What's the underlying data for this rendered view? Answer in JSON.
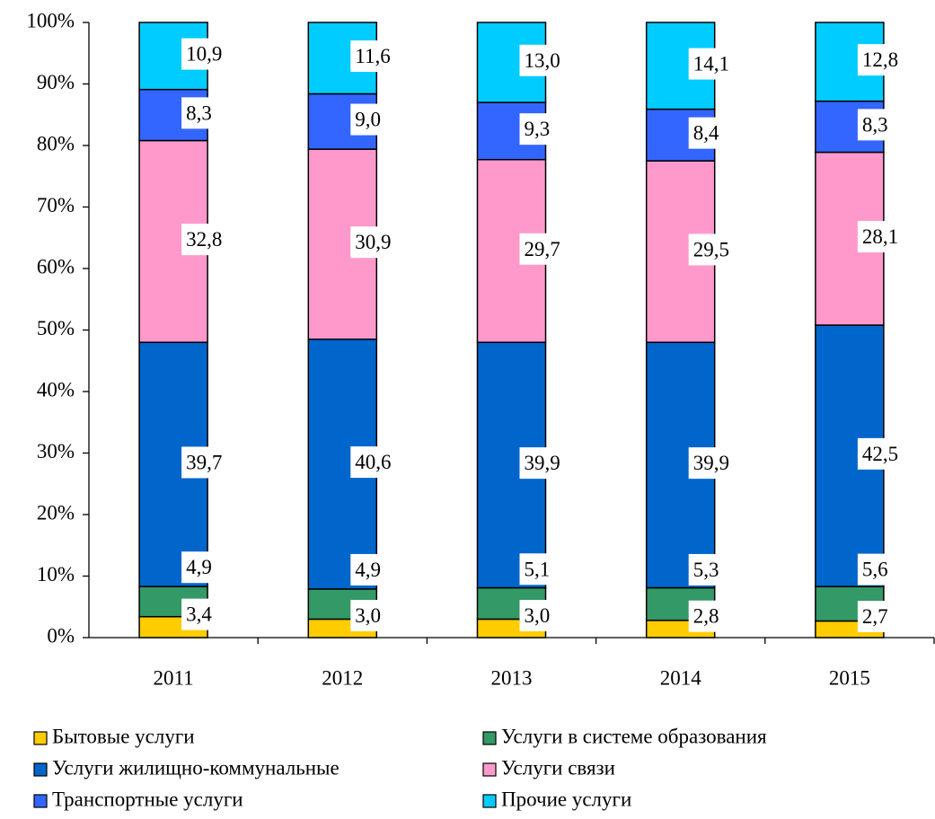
{
  "chart_data": {
    "type": "stacked_bar_100",
    "categories": [
      "2011",
      "2012",
      "2013",
      "2014",
      "2015"
    ],
    "series": [
      {
        "name": "Бытовые услуги",
        "color": "#ffcc00",
        "values": [
          3.4,
          3.0,
          3.0,
          2.8,
          2.7
        ],
        "value_labels": [
          "3,4",
          "3,0",
          "3,0",
          "2,8",
          "2,7"
        ]
      },
      {
        "name": "Услуги в системе образования",
        "color": "#339966",
        "values": [
          4.9,
          4.9,
          5.1,
          5.3,
          5.6
        ],
        "value_labels": [
          "4,9",
          "4,9",
          "5,1",
          "5,3",
          "5,6"
        ]
      },
      {
        "name": "Услуги жилищно-коммунальные",
        "color": "#0066cc",
        "values": [
          39.7,
          40.6,
          39.9,
          39.9,
          42.5
        ],
        "value_labels": [
          "39,7",
          "40,6",
          "39,9",
          "39,9",
          "42,5"
        ]
      },
      {
        "name": "Услуги связи",
        "color": "#ff99cc",
        "values": [
          32.8,
          30.9,
          29.7,
          29.5,
          28.1
        ],
        "value_labels": [
          "32,8",
          "30,9",
          "29,7",
          "29,5",
          "28,1"
        ]
      },
      {
        "name": "Транспортные услуги",
        "color": "#3366ff",
        "values": [
          8.3,
          9.0,
          9.3,
          8.4,
          8.3
        ],
        "value_labels": [
          "8,3",
          "9,0",
          "9,3",
          "8,4",
          "8,3"
        ]
      },
      {
        "name": "Прочие услуги",
        "color": "#00ccff",
        "values": [
          10.9,
          11.6,
          13.0,
          14.1,
          12.8
        ],
        "value_labels": [
          "10,9",
          "11,6",
          "13,0",
          "14,1",
          "12,8"
        ]
      }
    ],
    "ylim": [
      0,
      100
    ],
    "yticks": [
      {
        "value": 0,
        "label": "0%"
      },
      {
        "value": 10,
        "label": "10%"
      },
      {
        "value": 20,
        "label": "20%"
      },
      {
        "value": 30,
        "label": "30%"
      },
      {
        "value": 40,
        "label": "40%"
      },
      {
        "value": 50,
        "label": "50%"
      },
      {
        "value": 60,
        "label": "60%"
      },
      {
        "value": 70,
        "label": "70%"
      },
      {
        "value": 80,
        "label": "80%"
      },
      {
        "value": 90,
        "label": "90%"
      },
      {
        "value": 100,
        "label": "100%"
      }
    ],
    "legend": "bottom"
  }
}
